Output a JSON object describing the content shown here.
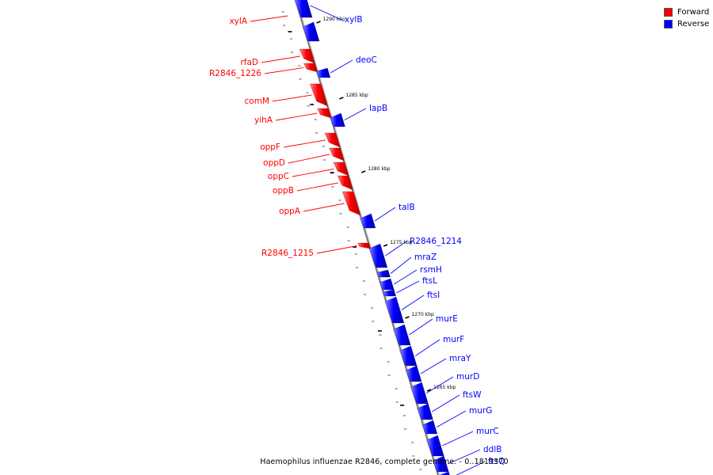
{
  "legend": {
    "forward_label": "Forward",
    "reverse_label": "Reverse",
    "forward_color": "#ff0000",
    "reverse_color": "#0000ff"
  },
  "caption": "Haemophilus influenzae R2846, complete genome. - 0..1819370",
  "strand_colors": {
    "forward": "#ff0000",
    "reverse": "#0000ff",
    "axis": "#999999"
  },
  "ticks": [
    {
      "label": "1290 kbp",
      "kbp": 1290
    },
    {
      "label": "1285 kbp",
      "kbp": 1285
    },
    {
      "label": "1280 kbp",
      "kbp": 1280
    },
    {
      "label": "1275 kbp",
      "kbp": 1275
    },
    {
      "label": "1270 kbp",
      "kbp": 1270
    },
    {
      "label": "1265 kbp",
      "kbp": 1265
    }
  ],
  "forward_genes": [
    {
      "name": "xylA"
    },
    {
      "name": "rfaD"
    },
    {
      "name": "R2846_1226"
    },
    {
      "name": "comM"
    },
    {
      "name": "yihA"
    },
    {
      "name": "oppF"
    },
    {
      "name": "oppD"
    },
    {
      "name": "oppC"
    },
    {
      "name": "oppB"
    },
    {
      "name": "oppA"
    },
    {
      "name": "R2846_1215"
    }
  ],
  "reverse_genes": [
    {
      "name": "xylB"
    },
    {
      "name": "deoC"
    },
    {
      "name": "lapB"
    },
    {
      "name": "talB"
    },
    {
      "name": "R2846_1214"
    },
    {
      "name": "mraZ"
    },
    {
      "name": "rsmH"
    },
    {
      "name": "ftsL"
    },
    {
      "name": "ftsI"
    },
    {
      "name": "murE"
    },
    {
      "name": "murF"
    },
    {
      "name": "mraY"
    },
    {
      "name": "murD"
    },
    {
      "name": "ftsW"
    },
    {
      "name": "murG"
    },
    {
      "name": "murC"
    },
    {
      "name": "ddlB"
    },
    {
      "name": "ftsQ"
    }
  ]
}
